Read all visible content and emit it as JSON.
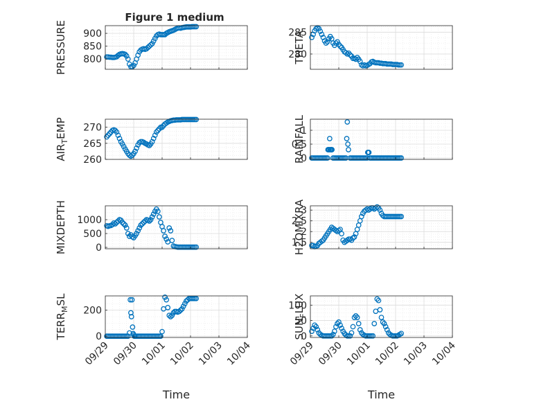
{
  "figure": {
    "title": "Figure 1 medium",
    "marker_color": "#0072BD"
  },
  "x_ticks": [
    "09/29",
    "09/30",
    "10/01",
    "10/02",
    "10/03",
    "10/04"
  ],
  "chart_data": [
    {
      "type": "scatter",
      "ylabel": "PRESSURE",
      "xlim": [
        "09/29",
        "10/04"
      ],
      "ylim": [
        760,
        930
      ],
      "yticks": [
        {
          "v": 800,
          "label": "800"
        },
        {
          "v": 850,
          "label": "850"
        },
        {
          "v": 900,
          "label": "900"
        }
      ],
      "x": [
        0.05,
        0.1,
        0.15,
        0.2,
        0.25,
        0.3,
        0.35,
        0.4,
        0.45,
        0.5,
        0.55,
        0.6,
        0.65,
        0.7,
        0.75,
        0.8,
        0.85,
        0.9,
        0.95,
        1.0,
        1.05,
        1.1,
        1.15,
        1.2,
        1.25,
        1.3,
        1.35,
        1.4,
        1.45,
        1.5,
        1.55,
        1.6,
        1.65,
        1.7,
        1.75,
        1.8,
        1.85,
        1.9,
        1.95,
        2.0,
        2.05,
        2.1,
        2.15,
        2.2,
        2.25,
        2.3,
        2.35,
        2.4,
        2.45,
        2.5,
        2.55,
        2.6,
        2.65,
        2.7,
        2.75,
        2.8,
        2.85,
        2.9,
        2.95,
        3.0,
        3.05,
        3.1,
        3.15,
        3.2
      ],
      "y": [
        808,
        808,
        807,
        807,
        806,
        806,
        807,
        809,
        814,
        818,
        820,
        821,
        820,
        818,
        812,
        800,
        780,
        770,
        770,
        775,
        785,
        800,
        815,
        828,
        835,
        838,
        840,
        838,
        840,
        845,
        850,
        855,
        860,
        870,
        880,
        890,
        895,
        897,
        895,
        895,
        895,
        895,
        900,
        903,
        906,
        908,
        910,
        912,
        915,
        918,
        920,
        921,
        920,
        922,
        923,
        924,
        925,
        925,
        925,
        925,
        926,
        926,
        926,
        926
      ]
    },
    {
      "type": "scatter",
      "ylabel": "THETA",
      "xlim": [
        "09/29",
        "10/04"
      ],
      "ylim": [
        276.5,
        286.5
      ],
      "yticks": [
        {
          "v": 280,
          "label": "280"
        },
        {
          "v": 285,
          "label": "285"
        }
      ],
      "x": [
        0.05,
        0.1,
        0.15,
        0.2,
        0.25,
        0.3,
        0.35,
        0.4,
        0.45,
        0.5,
        0.55,
        0.6,
        0.65,
        0.7,
        0.75,
        0.8,
        0.85,
        0.9,
        0.95,
        1.0,
        1.05,
        1.1,
        1.15,
        1.2,
        1.25,
        1.3,
        1.35,
        1.4,
        1.45,
        1.5,
        1.55,
        1.6,
        1.65,
        1.7,
        1.75,
        1.8,
        1.85,
        1.9,
        1.95,
        2.0,
        2.05,
        2.1,
        2.15,
        2.2,
        2.25,
        2.3,
        2.35,
        2.4,
        2.45,
        2.5,
        2.55,
        2.6,
        2.65,
        2.7,
        2.75,
        2.8,
        2.85,
        2.9,
        2.95,
        3.0,
        3.05,
        3.1,
        3.15,
        3.2
      ],
      "y": [
        283.8,
        284.5,
        285.3,
        285.8,
        286.0,
        285.8,
        285.2,
        284.5,
        283.8,
        283.0,
        282.5,
        282.8,
        283.5,
        284.0,
        283.5,
        282.5,
        282.0,
        282.5,
        282.8,
        282.2,
        281.8,
        281.5,
        281.0,
        280.5,
        280.3,
        280.0,
        280.2,
        279.8,
        279.5,
        279.0,
        279.0,
        278.8,
        279.2,
        278.8,
        278.3,
        277.5,
        277.3,
        277.5,
        277.3,
        277.4,
        277.6,
        277.8,
        278.2,
        278.3,
        278.1,
        278.0,
        278.0,
        278.0,
        277.9,
        277.9,
        277.8,
        277.8,
        277.8,
        277.7,
        277.7,
        277.7,
        277.7,
        277.6,
        277.6,
        277.6,
        277.6,
        277.5,
        277.5,
        277.5
      ]
    },
    {
      "type": "scatter",
      "ylabel": "AIR_TEMP",
      "xlim": [
        "09/29",
        "10/04"
      ],
      "ylim": [
        260,
        272.5
      ],
      "yticks": [
        {
          "v": 260,
          "label": "260"
        },
        {
          "v": 265,
          "label": "265"
        },
        {
          "v": 270,
          "label": "270"
        }
      ],
      "x": [
        0.05,
        0.1,
        0.15,
        0.2,
        0.25,
        0.3,
        0.35,
        0.4,
        0.45,
        0.5,
        0.55,
        0.6,
        0.65,
        0.7,
        0.75,
        0.8,
        0.85,
        0.9,
        0.95,
        1.0,
        1.05,
        1.1,
        1.15,
        1.2,
        1.25,
        1.3,
        1.35,
        1.4,
        1.45,
        1.5,
        1.55,
        1.6,
        1.65,
        1.7,
        1.75,
        1.8,
        1.85,
        1.9,
        1.95,
        2.0,
        2.05,
        2.1,
        2.15,
        2.2,
        2.25,
        2.3,
        2.35,
        2.4,
        2.45,
        2.5,
        2.55,
        2.6,
        2.65,
        2.7,
        2.75,
        2.8,
        2.85,
        2.9,
        2.95,
        3.0,
        3.05,
        3.1,
        3.15,
        3.2
      ],
      "y": [
        267.0,
        267.5,
        268.0,
        268.5,
        269.0,
        269.2,
        269.0,
        268.5,
        267.5,
        266.5,
        265.5,
        264.8,
        264.0,
        263.2,
        262.5,
        261.8,
        261.3,
        261.0,
        261.3,
        261.8,
        262.5,
        263.5,
        264.5,
        265.2,
        265.5,
        265.5,
        265.3,
        265.0,
        264.8,
        264.5,
        264.3,
        264.8,
        265.5,
        266.5,
        267.5,
        268.5,
        269.0,
        269.5,
        270.0,
        270.0,
        270.5,
        271.0,
        271.3,
        271.6,
        271.8,
        272.0,
        272.1,
        272.2,
        272.2,
        272.3,
        272.3,
        272.3,
        272.3,
        272.4,
        272.4,
        272.4,
        272.4,
        272.4,
        272.4,
        272.4,
        272.4,
        272.4,
        272.4,
        272.4
      ]
    },
    {
      "type": "scatter",
      "ylabel": "RAINFALL",
      "xlim": [
        "09/29",
        "10/04"
      ],
      "ylim": [
        -0.05,
        1.4
      ],
      "yticks": [
        {
          "v": 0,
          "label": "0"
        },
        {
          "v": 0.5,
          "label": "0.5"
        },
        {
          "v": 1,
          "label": "1"
        }
      ],
      "x": [
        0.05,
        0.1,
        0.15,
        0.2,
        0.25,
        0.3,
        0.35,
        0.4,
        0.45,
        0.5,
        0.55,
        0.6,
        0.62,
        0.64,
        0.66,
        0.68,
        0.7,
        0.72,
        0.74,
        0.76,
        0.8,
        0.85,
        0.9,
        0.95,
        1.0,
        1.05,
        1.1,
        1.15,
        1.2,
        1.25,
        1.28,
        1.3,
        1.32,
        1.34,
        1.4,
        1.45,
        1.5,
        1.55,
        1.6,
        1.65,
        1.7,
        1.75,
        1.8,
        1.85,
        1.9,
        1.95,
        2.0,
        2.02,
        2.04,
        2.06,
        2.1,
        2.15,
        2.2,
        2.25,
        2.3,
        2.35,
        2.4,
        2.45,
        2.5,
        2.55,
        2.6,
        2.65,
        2.7,
        2.75,
        2.8,
        2.85,
        2.9,
        2.95,
        3.0,
        3.05,
        3.1,
        3.15,
        3.2
      ],
      "y": [
        0,
        0,
        0,
        0,
        0,
        0,
        0,
        0,
        0,
        0,
        0,
        0,
        0.3,
        0.3,
        0.3,
        0.7,
        0.3,
        0.3,
        0.3,
        0.3,
        0,
        0,
        0,
        0,
        0,
        0,
        0,
        0,
        0,
        0,
        0.7,
        1.3,
        0.5,
        0.3,
        0,
        0,
        0,
        0,
        0,
        0,
        0,
        0,
        0,
        0,
        0,
        0,
        0,
        0.2,
        0.2,
        0.2,
        0,
        0,
        0,
        0,
        0,
        0,
        0,
        0,
        0,
        0,
        0,
        0,
        0,
        0,
        0,
        0,
        0,
        0,
        0,
        0,
        0,
        0,
        0
      ]
    },
    {
      "type": "scatter",
      "ylabel": "MIXDEPTH",
      "xlim": [
        "09/29",
        "10/04"
      ],
      "ylim": [
        -50,
        1500
      ],
      "yticks": [
        {
          "v": 0,
          "label": "0"
        },
        {
          "v": 500,
          "label": "500"
        },
        {
          "v": 1000,
          "label": "1000"
        }
      ],
      "x": [
        0.05,
        0.1,
        0.15,
        0.2,
        0.25,
        0.3,
        0.35,
        0.4,
        0.45,
        0.5,
        0.55,
        0.6,
        0.65,
        0.7,
        0.75,
        0.8,
        0.85,
        0.9,
        0.95,
        1.0,
        1.05,
        1.1,
        1.15,
        1.2,
        1.25,
        1.3,
        1.35,
        1.4,
        1.45,
        1.5,
        1.55,
        1.6,
        1.65,
        1.7,
        1.75,
        1.8,
        1.85,
        1.9,
        1.95,
        2.0,
        2.05,
        2.1,
        2.15,
        2.2,
        2.25,
        2.3,
        2.35,
        2.4,
        2.45,
        2.5,
        2.55,
        2.6,
        2.65,
        2.7,
        2.75,
        2.8,
        2.85,
        2.9,
        2.95,
        3.0,
        3.05,
        3.1,
        3.15,
        3.2
      ],
      "y": [
        780,
        760,
        780,
        790,
        820,
        880,
        850,
        900,
        950,
        1000,
        980,
        900,
        850,
        800,
        700,
        500,
        400,
        450,
        380,
        350,
        420,
        500,
        600,
        700,
        800,
        850,
        900,
        950,
        1000,
        980,
        950,
        1000,
        1100,
        1200,
        1300,
        1380,
        1300,
        1100,
        900,
        750,
        600,
        400,
        300,
        200,
        700,
        600,
        250,
        50,
        30,
        20,
        10,
        10,
        10,
        10,
        10,
        10,
        10,
        10,
        10,
        10,
        10,
        10,
        10,
        10
      ]
    },
    {
      "type": "scatter",
      "ylabel": "H2OMIXRA",
      "xlim": [
        "09/29",
        "10/04"
      ],
      "ylim": [
        1.2,
        3.2
      ],
      "yticks": [
        {
          "v": 1.5,
          "label": "1.5"
        },
        {
          "v": 2,
          "label": "2"
        },
        {
          "v": 2.5,
          "label": "2.5"
        },
        {
          "v": 3,
          "label": "3"
        }
      ],
      "x": [
        0.05,
        0.1,
        0.15,
        0.2,
        0.25,
        0.3,
        0.35,
        0.4,
        0.45,
        0.5,
        0.55,
        0.6,
        0.65,
        0.7,
        0.75,
        0.8,
        0.85,
        0.9,
        0.95,
        1.0,
        1.05,
        1.1,
        1.15,
        1.2,
        1.25,
        1.3,
        1.35,
        1.4,
        1.45,
        1.5,
        1.55,
        1.6,
        1.65,
        1.7,
        1.75,
        1.8,
        1.85,
        1.9,
        1.95,
        2.0,
        2.05,
        2.1,
        2.15,
        2.2,
        2.25,
        2.3,
        2.35,
        2.4,
        2.45,
        2.5,
        2.55,
        2.6,
        2.65,
        2.7,
        2.75,
        2.8,
        2.85,
        2.9,
        2.95,
        3.0,
        3.05,
        3.1,
        3.15,
        3.2
      ],
      "y": [
        1.35,
        1.35,
        1.3,
        1.32,
        1.35,
        1.45,
        1.5,
        1.55,
        1.6,
        1.7,
        1.8,
        1.9,
        2.0,
        2.1,
        2.2,
        2.15,
        2.1,
        2.05,
        2.0,
        2.05,
        2.1,
        1.9,
        1.6,
        1.5,
        1.55,
        1.6,
        1.65,
        1.65,
        1.6,
        1.7,
        1.75,
        1.9,
        2.1,
        2.3,
        2.5,
        2.7,
        2.85,
        2.95,
        3.0,
        3.05,
        3.0,
        3.05,
        3.1,
        3.1,
        3.05,
        3.1,
        3.15,
        3.1,
        3.0,
        2.85,
        2.75,
        2.7,
        2.7,
        2.7,
        2.7,
        2.7,
        2.7,
        2.7,
        2.7,
        2.7,
        2.7,
        2.7,
        2.7,
        2.7
      ]
    },
    {
      "type": "scatter",
      "ylabel": "TERR_MSL",
      "xlim": [
        "09/29",
        "10/04"
      ],
      "ylim": [
        -10,
        310
      ],
      "yticks": [
        {
          "v": 0,
          "label": "0"
        },
        {
          "v": 200,
          "label": "200"
        }
      ],
      "x": [
        0.05,
        0.1,
        0.15,
        0.2,
        0.25,
        0.3,
        0.35,
        0.4,
        0.45,
        0.5,
        0.55,
        0.6,
        0.65,
        0.7,
        0.75,
        0.8,
        0.85,
        0.88,
        0.9,
        0.92,
        0.94,
        0.96,
        0.98,
        1.0,
        1.02,
        1.05,
        1.1,
        1.15,
        1.2,
        1.25,
        1.3,
        1.35,
        1.4,
        1.45,
        1.5,
        1.55,
        1.6,
        1.65,
        1.7,
        1.75,
        1.8,
        1.85,
        1.9,
        1.95,
        2.0,
        2.05,
        2.1,
        2.15,
        2.2,
        2.25,
        2.3,
        2.35,
        2.4,
        2.45,
        2.5,
        2.55,
        2.6,
        2.65,
        2.7,
        2.75,
        2.8,
        2.85,
        2.9,
        2.95,
        3.0,
        3.05,
        3.1,
        3.15,
        3.2
      ],
      "y": [
        0,
        0,
        0,
        0,
        0,
        0,
        0,
        0,
        0,
        0,
        0,
        0,
        0,
        0,
        0,
        0,
        25,
        280,
        180,
        150,
        280,
        70,
        20,
        10,
        0,
        0,
        0,
        0,
        0,
        0,
        0,
        0,
        0,
        0,
        0,
        0,
        0,
        0,
        0,
        0,
        0,
        0,
        0,
        0,
        35,
        210,
        300,
        280,
        220,
        160,
        150,
        160,
        180,
        190,
        190,
        185,
        190,
        200,
        210,
        230,
        250,
        270,
        280,
        290,
        290,
        290,
        290,
        290,
        290
      ]
    },
    {
      "type": "scatter",
      "ylabel": "SUN_FLUX",
      "xlim": [
        "09/29",
        "10/04"
      ],
      "ylim": [
        -5,
        130
      ],
      "yticks": [
        {
          "v": 0,
          "label": "0"
        },
        {
          "v": 50,
          "label": "50"
        },
        {
          "v": 100,
          "label": "100"
        }
      ],
      "x": [
        0.05,
        0.1,
        0.15,
        0.2,
        0.25,
        0.3,
        0.35,
        0.4,
        0.45,
        0.5,
        0.55,
        0.6,
        0.65,
        0.7,
        0.75,
        0.8,
        0.85,
        0.9,
        0.95,
        1.0,
        1.05,
        1.1,
        1.15,
        1.2,
        1.25,
        1.3,
        1.35,
        1.4,
        1.45,
        1.5,
        1.55,
        1.6,
        1.65,
        1.7,
        1.75,
        1.8,
        1.85,
        1.9,
        1.95,
        2.0,
        2.05,
        2.1,
        2.15,
        2.2,
        2.25,
        2.3,
        2.35,
        2.4,
        2.45,
        2.5,
        2.55,
        2.6,
        2.65,
        2.7,
        2.75,
        2.8,
        2.85,
        2.9,
        2.95,
        3.0,
        3.05,
        3.1,
        3.15,
        3.2
      ],
      "y": [
        15,
        25,
        35,
        30,
        20,
        10,
        5,
        2,
        0,
        0,
        0,
        0,
        0,
        0,
        0,
        5,
        15,
        30,
        40,
        45,
        35,
        25,
        15,
        8,
        3,
        0,
        0,
        0,
        10,
        30,
        60,
        65,
        60,
        40,
        20,
        10,
        5,
        2,
        0,
        0,
        0,
        0,
        0,
        0,
        40,
        80,
        120,
        115,
        85,
        60,
        45,
        40,
        30,
        20,
        10,
        5,
        2,
        0,
        0,
        0,
        0,
        2,
        5,
        8
      ]
    }
  ],
  "bottom_axes": [
    {
      "xlabel": "Time"
    },
    {
      "xlabel": "Time"
    }
  ]
}
